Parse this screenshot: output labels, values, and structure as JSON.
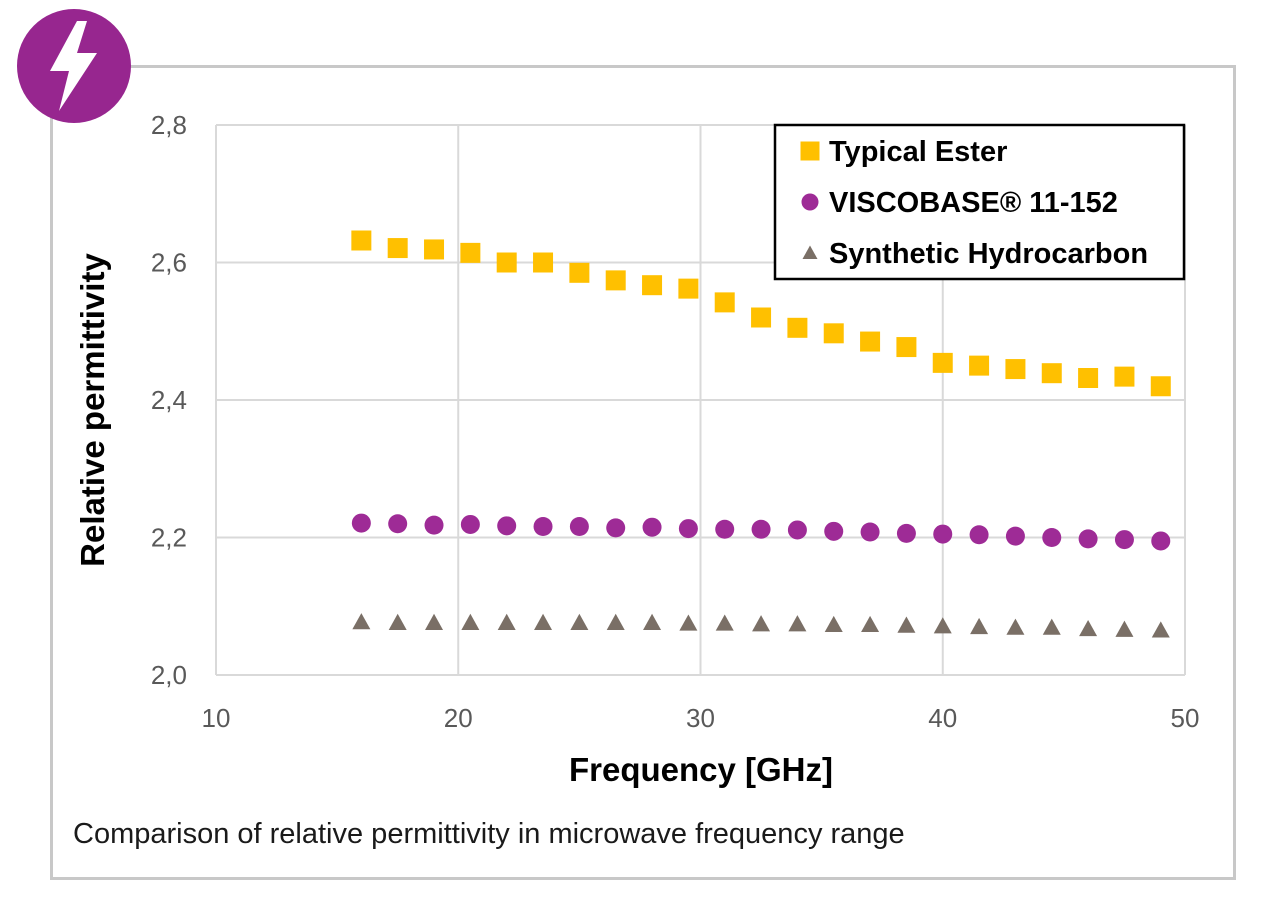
{
  "badge": {
    "icon": "lightning-bolt-icon",
    "color": "#97268f"
  },
  "caption": "Comparison of relative permittivity in microwave frequency range",
  "chart_data": {
    "type": "scatter",
    "xlabel": "Frequency [GHz]",
    "ylabel": "Relative permittivity",
    "xlim": [
      10,
      50
    ],
    "ylim": [
      2.0,
      2.8
    ],
    "x_ticks": [
      "10",
      "20",
      "30",
      "40",
      "50"
    ],
    "y_ticks": [
      "2,0",
      "2,2",
      "2,4",
      "2,6",
      "2,8"
    ],
    "grid": true,
    "legend_position": "top-right",
    "x": [
      16,
      17.5,
      19,
      20.5,
      22,
      23.5,
      25,
      26.5,
      28,
      29.5,
      31,
      32.5,
      34,
      35.5,
      37,
      38.5,
      40,
      41.5,
      43,
      44.5,
      46,
      47.5,
      49
    ],
    "series": [
      {
        "name": "Typical Ester",
        "marker": "square",
        "color": "#ffc000",
        "values": [
          2.632,
          2.621,
          2.619,
          2.614,
          2.6,
          2.6,
          2.585,
          2.574,
          2.567,
          2.562,
          2.542,
          2.52,
          2.505,
          2.497,
          2.485,
          2.477,
          2.454,
          2.45,
          2.445,
          2.439,
          2.432,
          2.434,
          2.42
        ]
      },
      {
        "name": "VISCOBASE® 11-152",
        "marker": "circle",
        "color": "#9e2b96",
        "values": [
          2.221,
          2.22,
          2.218,
          2.219,
          2.217,
          2.216,
          2.216,
          2.214,
          2.215,
          2.213,
          2.212,
          2.212,
          2.211,
          2.209,
          2.208,
          2.206,
          2.205,
          2.204,
          2.202,
          2.2,
          2.198,
          2.197,
          2.195
        ]
      },
      {
        "name": "Synthetic Hydrocarbon",
        "marker": "triangle",
        "color": "#7a6f66",
        "values": [
          2.077,
          2.076,
          2.076,
          2.076,
          2.076,
          2.076,
          2.076,
          2.076,
          2.076,
          2.075,
          2.075,
          2.074,
          2.074,
          2.073,
          2.073,
          2.072,
          2.071,
          2.07,
          2.069,
          2.069,
          2.067,
          2.066,
          2.065
        ]
      }
    ]
  }
}
